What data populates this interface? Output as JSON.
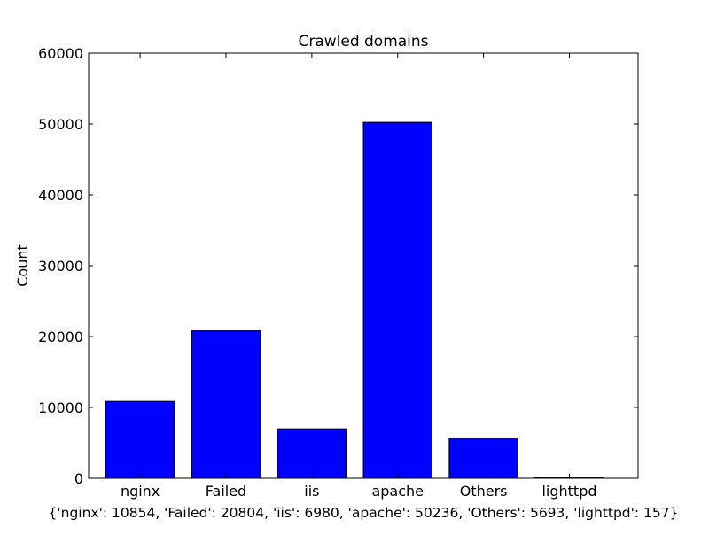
{
  "chart_data": {
    "type": "bar",
    "title": "Crawled domains",
    "xlabel": "{'nginx': 10854, 'Failed': 20804, 'iis': 6980, 'apache': 50236, 'Others': 5693, 'lighttpd': 157}",
    "ylabel": "Count",
    "categories": [
      "nginx",
      "Failed",
      "iis",
      "apache",
      "Others",
      "lighttpd"
    ],
    "values": [
      10854,
      20804,
      6980,
      50236,
      5693,
      157
    ],
    "ylim": [
      0,
      60000
    ],
    "yticks": [
      0,
      10000,
      20000,
      30000,
      40000,
      50000,
      60000
    ],
    "bar_color": "#0000ff",
    "grid": false,
    "legend": "none"
  }
}
